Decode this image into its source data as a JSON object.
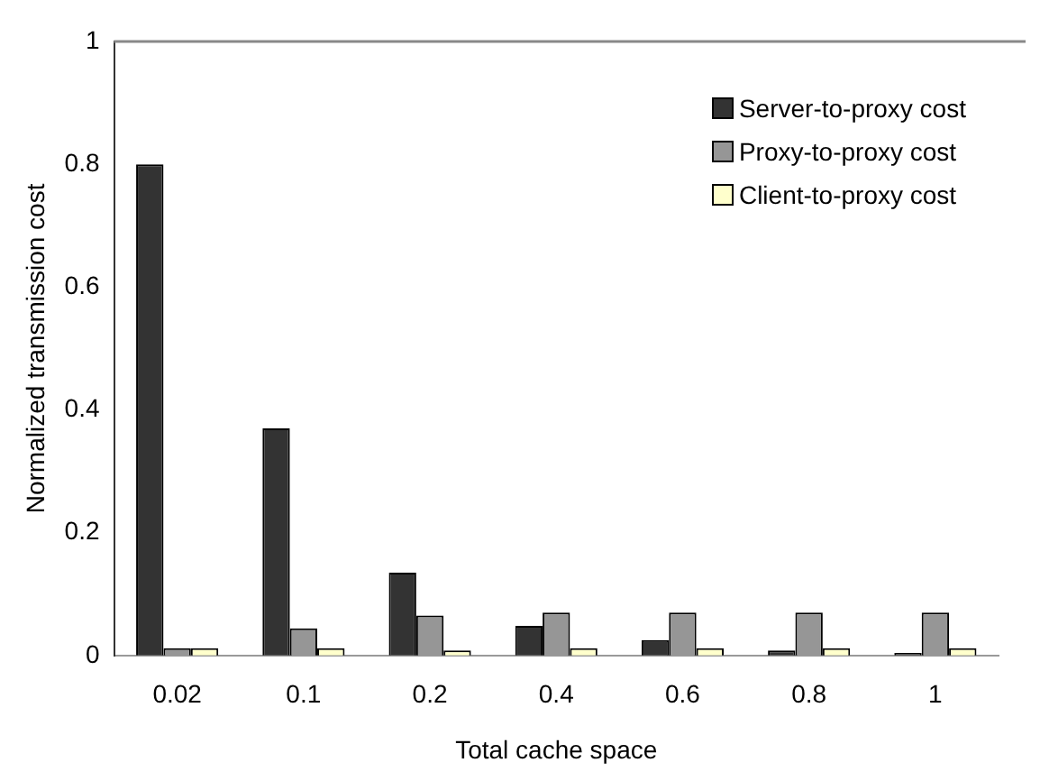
{
  "chart_data": {
    "type": "bar",
    "xlabel": "Total cache space",
    "ylabel": "Normalized transmission cost",
    "categories": [
      "0.02",
      "0.1",
      "0.2",
      "0.4",
      "0.6",
      "0.8",
      "1"
    ],
    "series": [
      {
        "name": "Server-to-proxy cost",
        "color": "#333333",
        "values": [
          0.8,
          0.37,
          0.135,
          0.048,
          0.025,
          0.008,
          0.004
        ]
      },
      {
        "name": "Proxy-to-proxy cost",
        "color": "#969696",
        "values": [
          0.012,
          0.044,
          0.065,
          0.07,
          0.07,
          0.07,
          0.07
        ]
      },
      {
        "name": "Client-to-proxy cost",
        "color": "#ffffcc",
        "values": [
          0.012,
          0.012,
          0.008,
          0.012,
          0.012,
          0.012,
          0.012
        ]
      }
    ],
    "ylim": [
      0,
      1
    ],
    "yticks": [
      0,
      0.2,
      0.4,
      0.6,
      0.8,
      1
    ],
    "grid": false,
    "legend": "top right"
  }
}
